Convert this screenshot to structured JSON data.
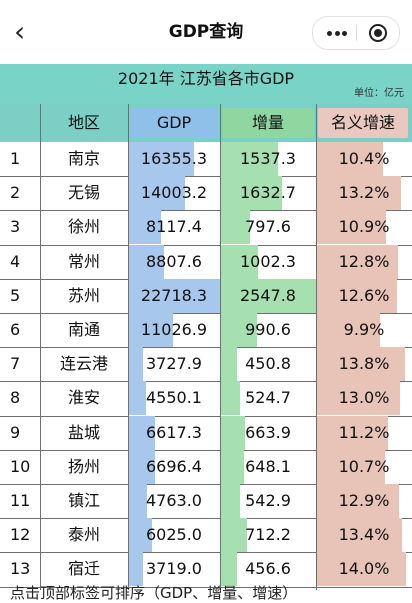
{
  "nav": {
    "title": "GDP查询"
  },
  "table_title": "2021年 江苏省各市GDP",
  "unit_label": "单位：亿元",
  "headers": {
    "region": "地区",
    "gdp": "GDP",
    "increase": "增量",
    "growth": "名义增速"
  },
  "rows": [
    {
      "index": "1",
      "region": "南京",
      "gdp": "16355.3",
      "increase": "1537.3",
      "growth": "10.4%",
      "gdp_v": 16355.3,
      "inc_v": 1537.3,
      "growth_v": 10.4
    },
    {
      "index": "2",
      "region": "无锡",
      "gdp": "14003.2",
      "increase": "1632.7",
      "growth": "13.2%",
      "gdp_v": 14003.2,
      "inc_v": 1632.7,
      "growth_v": 13.2
    },
    {
      "index": "3",
      "region": "徐州",
      "gdp": "8117.4",
      "increase": "797.6",
      "growth": "10.9%",
      "gdp_v": 8117.4,
      "inc_v": 797.6,
      "growth_v": 10.9
    },
    {
      "index": "4",
      "region": "常州",
      "gdp": "8807.6",
      "increase": "1002.3",
      "growth": "12.8%",
      "gdp_v": 8807.6,
      "inc_v": 1002.3,
      "growth_v": 12.8
    },
    {
      "index": "5",
      "region": "苏州",
      "gdp": "22718.3",
      "increase": "2547.8",
      "growth": "12.6%",
      "gdp_v": 22718.3,
      "inc_v": 2547.8,
      "growth_v": 12.6
    },
    {
      "index": "6",
      "region": "南通",
      "gdp": "11026.9",
      "increase": "990.6",
      "growth": "9.9%",
      "gdp_v": 11026.9,
      "inc_v": 990.6,
      "growth_v": 9.9
    },
    {
      "index": "7",
      "region": "连云港",
      "gdp": "3727.9",
      "increase": "450.8",
      "growth": "13.8%",
      "gdp_v": 3727.9,
      "inc_v": 450.8,
      "growth_v": 13.8
    },
    {
      "index": "8",
      "region": "淮安",
      "gdp": "4550.1",
      "increase": "524.7",
      "growth": "13.0%",
      "gdp_v": 4550.1,
      "inc_v": 524.7,
      "growth_v": 13.0
    },
    {
      "index": "9",
      "region": "盐城",
      "gdp": "6617.3",
      "increase": "663.9",
      "growth": "11.2%",
      "gdp_v": 6617.3,
      "inc_v": 663.9,
      "growth_v": 11.2
    },
    {
      "index": "10",
      "region": "扬州",
      "gdp": "6696.4",
      "increase": "648.1",
      "growth": "10.7%",
      "gdp_v": 6696.4,
      "inc_v": 648.1,
      "growth_v": 10.7
    },
    {
      "index": "11",
      "region": "镇江",
      "gdp": "4763.0",
      "increase": "542.9",
      "growth": "12.9%",
      "gdp_v": 4763.0,
      "inc_v": 542.9,
      "growth_v": 12.9
    },
    {
      "index": "12",
      "region": "泰州",
      "gdp": "6025.0",
      "increase": "712.2",
      "growth": "13.4%",
      "gdp_v": 6025.0,
      "inc_v": 712.2,
      "growth_v": 13.4
    },
    {
      "index": "13",
      "region": "宿迁",
      "gdp": "3719.0",
      "increase": "456.6",
      "growth": "14.0%",
      "gdp_v": 3719.0,
      "inc_v": 456.6,
      "growth_v": 14.0
    }
  ],
  "footer_text": "点击顶部标签可排序（GDP、增量、增速）",
  "colors": {
    "title_bg": "#79d3c7",
    "header_bg": "#7ccfc5",
    "gdp_bar": "#a8c7ec",
    "increase_bar": "#a6e0b0",
    "growth_bar": "#e8c3b8",
    "header_cell_bg": "#e9c9bf"
  },
  "icons": {
    "back": "chevron-left-icon",
    "more": "more-dots-icon",
    "close": "target-icon"
  }
}
